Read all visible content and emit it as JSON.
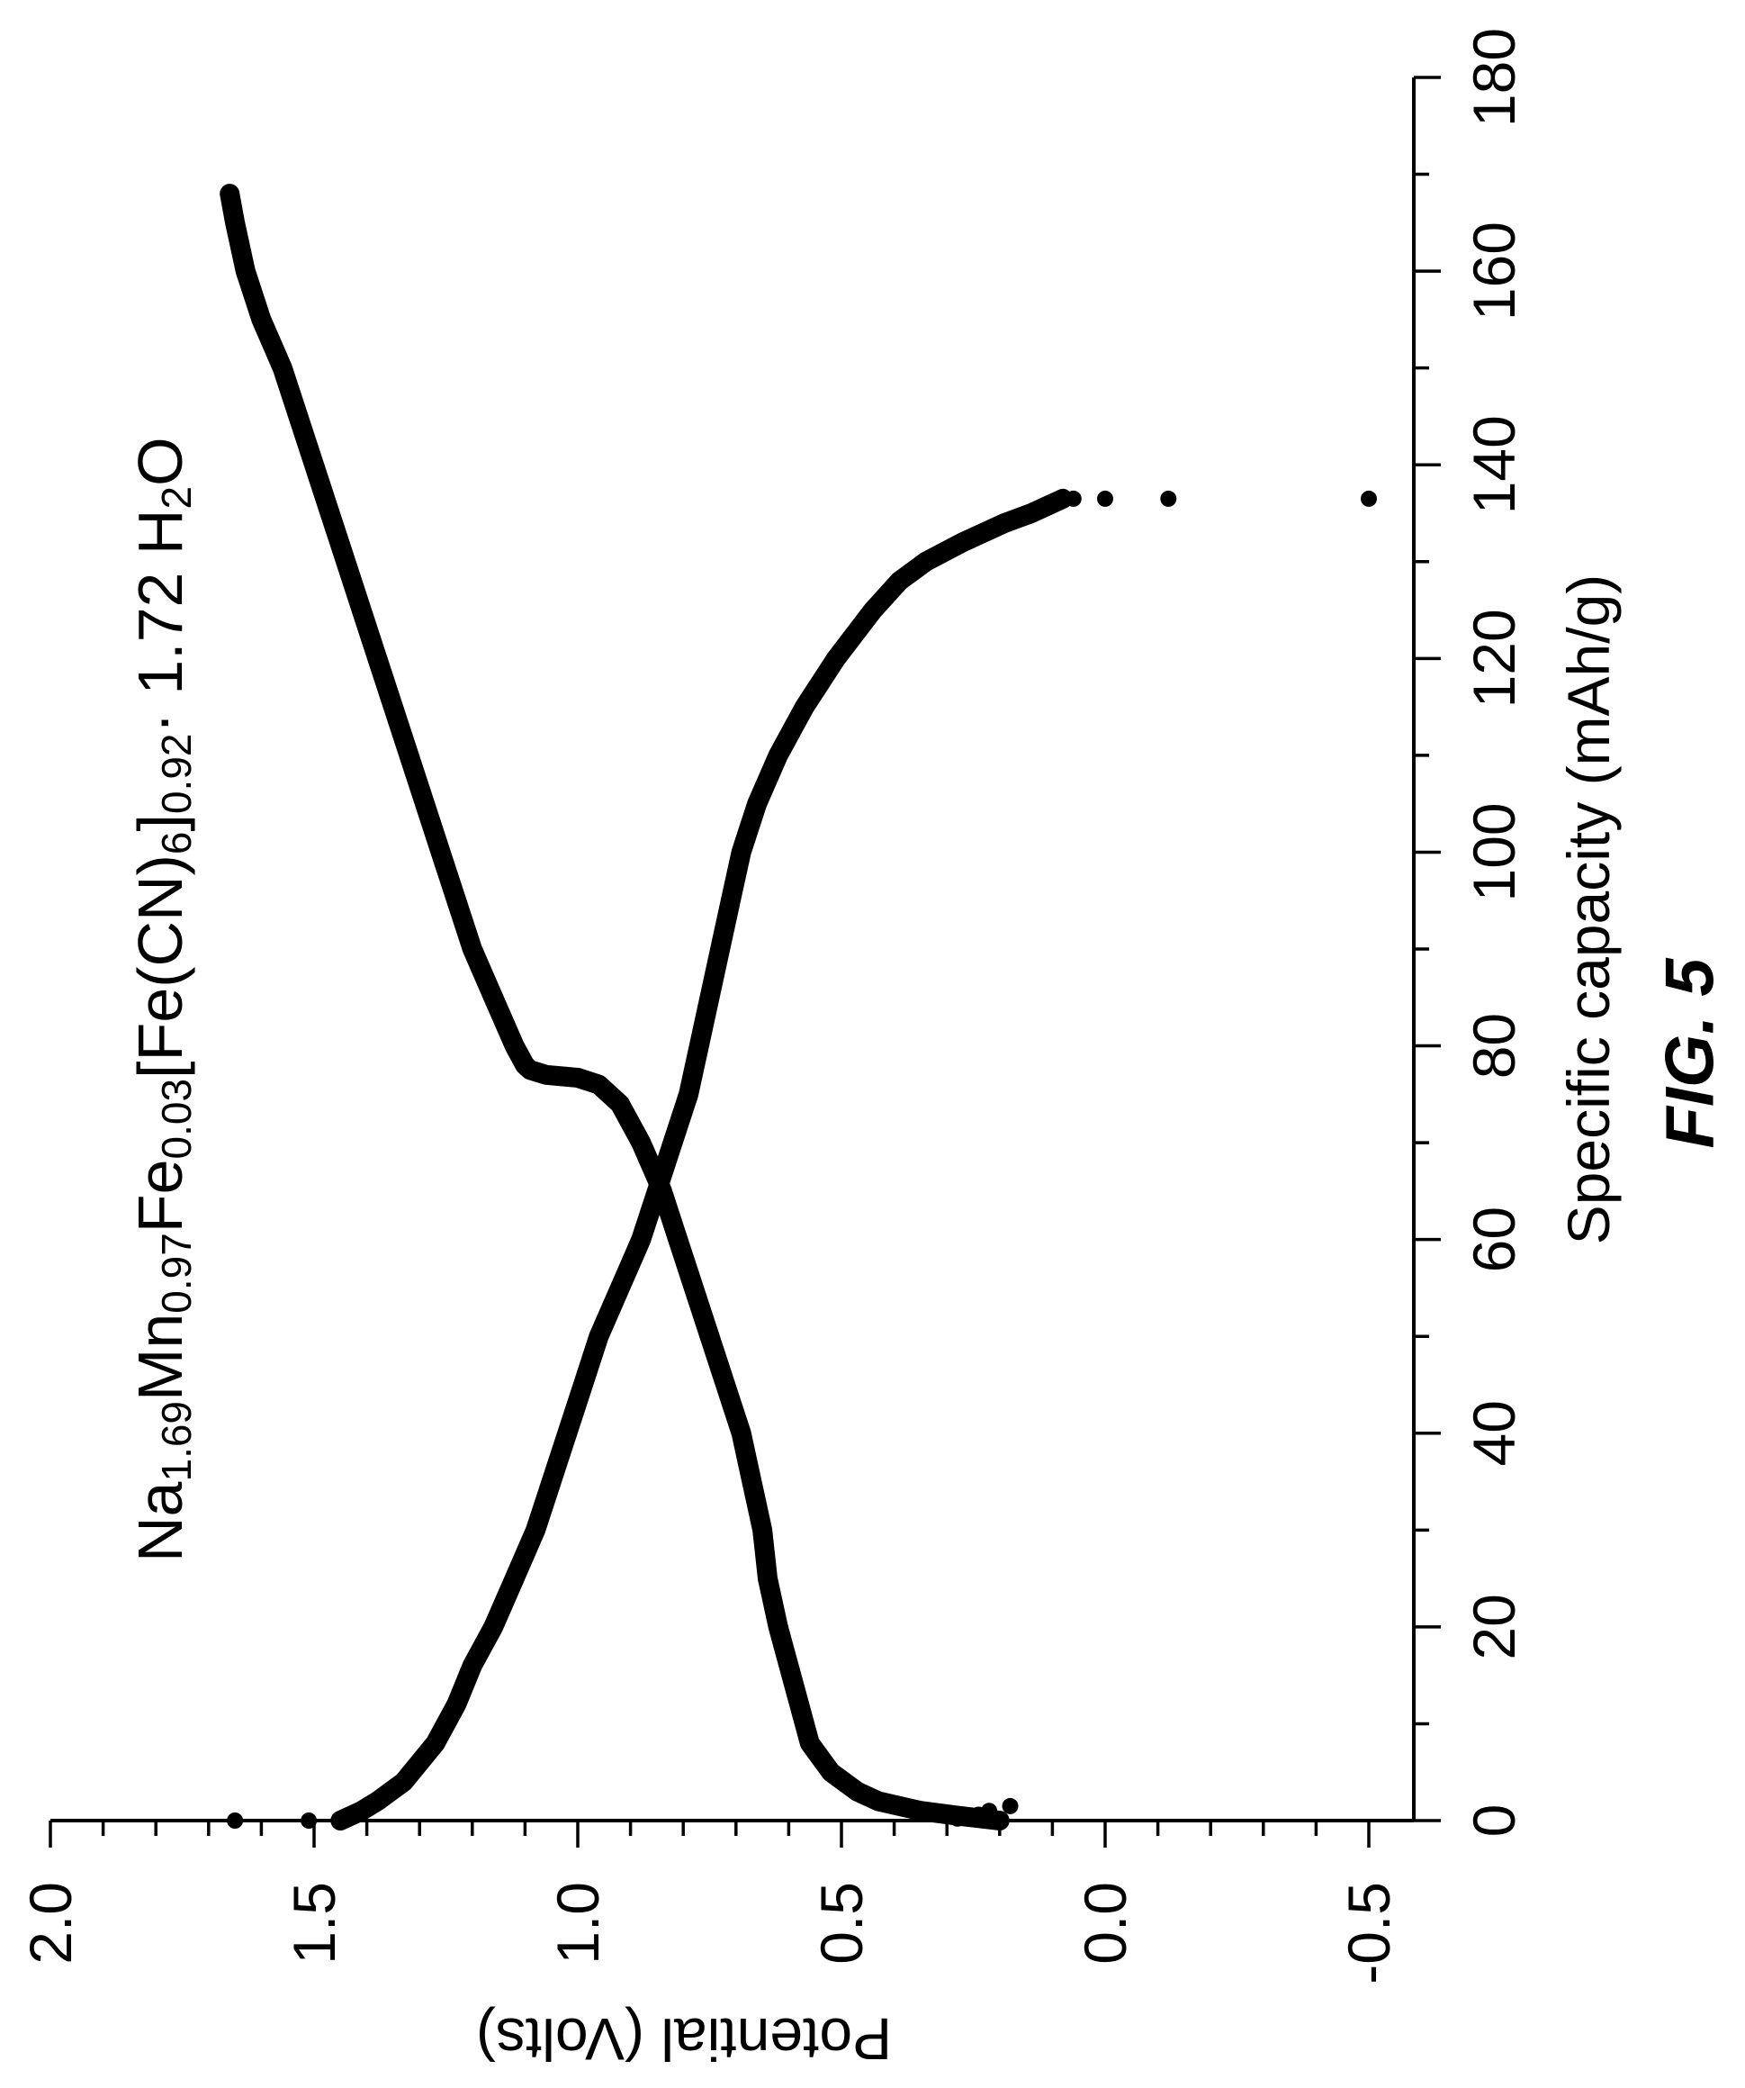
{
  "chart_data": {
    "type": "line",
    "title": {
      "prefix": "Na",
      "sub1": "1.69",
      "mid1": "Mn",
      "sub2": "0.97",
      "mid2": "Fe",
      "sub3": "0.03",
      "mid3": "[Fe(CN)",
      "sub4": "6",
      "mid4": "]",
      "sub5": "0.92",
      "mid5": "· 1.72 H",
      "sub6": "2",
      "suffix": "O"
    },
    "xlabel": "Specific capacity (mAh/g)",
    "ylabel": "Potential (Volts)",
    "caption": "FIG. 5",
    "xlim": [
      0,
      180
    ],
    "ylim": [
      -0.6,
      2.0
    ],
    "xticks": [
      0,
      20,
      40,
      60,
      80,
      100,
      120,
      140,
      160,
      180
    ],
    "yticks": [
      2.0,
      1.5,
      1.0,
      0.5,
      0.0,
      -0.5
    ],
    "xtick_labels": [
      "0",
      "20",
      "40",
      "60",
      "80",
      "100",
      "120",
      "140",
      "160",
      "180"
    ],
    "ytick_labels": [
      "2.0",
      "1.5",
      "1.0",
      "0.5",
      "0.0",
      "-0.5"
    ],
    "grid": false,
    "legend": "none",
    "series": [
      {
        "x": [
          0,
          0.5,
          1,
          2,
          3,
          5,
          8,
          12,
          16,
          20,
          25,
          30,
          35,
          40,
          45,
          50,
          55,
          60,
          65,
          70,
          74,
          76,
          76.7,
          77,
          77.5,
          78,
          80,
          85,
          90,
          95,
          100,
          110,
          120,
          130,
          140,
          150,
          155,
          160,
          165,
          168
        ],
        "y": [
          0.2,
          0.28,
          0.35,
          0.43,
          0.47,
          0.52,
          0.56,
          0.58,
          0.6,
          0.62,
          0.64,
          0.65,
          0.67,
          0.69,
          0.72,
          0.75,
          0.78,
          0.81,
          0.84,
          0.88,
          0.92,
          0.96,
          1.0,
          1.06,
          1.09,
          1.1,
          1.12,
          1.16,
          1.2,
          1.23,
          1.26,
          1.32,
          1.38,
          1.44,
          1.5,
          1.56,
          1.6,
          1.63,
          1.65,
          1.66
        ]
      },
      {
        "x": [
          0,
          0.5,
          1,
          2,
          4,
          8,
          12,
          16,
          20,
          25,
          30,
          35,
          40,
          45,
          50,
          55,
          60,
          65,
          70,
          75,
          80,
          85,
          90,
          95,
          100,
          105,
          110,
          115,
          120,
          125,
          128,
          130,
          132,
          134,
          135,
          136,
          136.5
        ],
        "y": [
          1.45,
          1.43,
          1.41,
          1.38,
          1.33,
          1.27,
          1.23,
          1.2,
          1.16,
          1.12,
          1.08,
          1.05,
          1.02,
          0.99,
          0.96,
          0.92,
          0.88,
          0.85,
          0.82,
          0.79,
          0.77,
          0.75,
          0.73,
          0.71,
          0.69,
          0.66,
          0.62,
          0.57,
          0.51,
          0.44,
          0.39,
          0.34,
          0.27,
          0.19,
          0.14,
          0.1,
          0.08
        ]
      },
      {
        "x": [
          0,
          0,
          0,
          0.2,
          0.4,
          0.6,
          1,
          1.5,
          136.5,
          136.5,
          136.5,
          136.5,
          136.5
        ],
        "y": [
          1.65,
          1.51,
          1.45,
          0.28,
          0.26,
          0.24,
          0.22,
          0.18,
          0.08,
          0.06,
          0.0,
          -0.12,
          -0.5
        ]
      }
    ]
  }
}
